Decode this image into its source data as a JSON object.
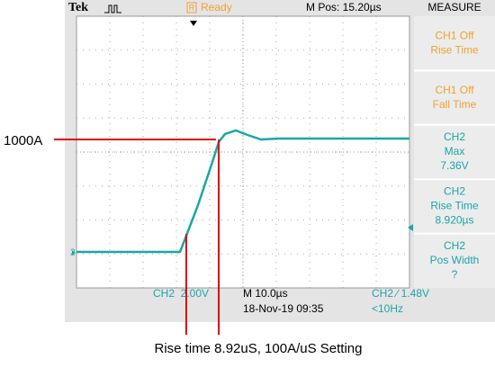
{
  "top": {
    "brand": "Tek",
    "status_icon": "R",
    "status": "Ready",
    "mpos": "M Pos: 15.20µs"
  },
  "menu": {
    "title": "MEASURE",
    "items": [
      {
        "lines": [
          "CH1 Off",
          "Rise Time"
        ]
      },
      {
        "lines": [
          "CH1 Off",
          "Fall Time"
        ]
      },
      {
        "lines": [
          "CH2",
          "Max",
          "7.36V"
        ]
      },
      {
        "lines": [
          "CH2",
          "Rise Time",
          "8.920µs"
        ]
      },
      {
        "lines": [
          "CH2",
          "Pos Width",
          "?"
        ]
      }
    ]
  },
  "channel_marker": "2",
  "bottom": {
    "ch_scale": "CH2  2.00V",
    "time_scale": "M 10.0µs",
    "datetime": "18-Nov-19 09:35",
    "trigger": "CH2 ∕ 1.48V",
    "freq": "<10Hz"
  },
  "annotations": {
    "level": "1000A",
    "caption": "Rise time 8.92uS, 100A/uS Setting"
  }
}
